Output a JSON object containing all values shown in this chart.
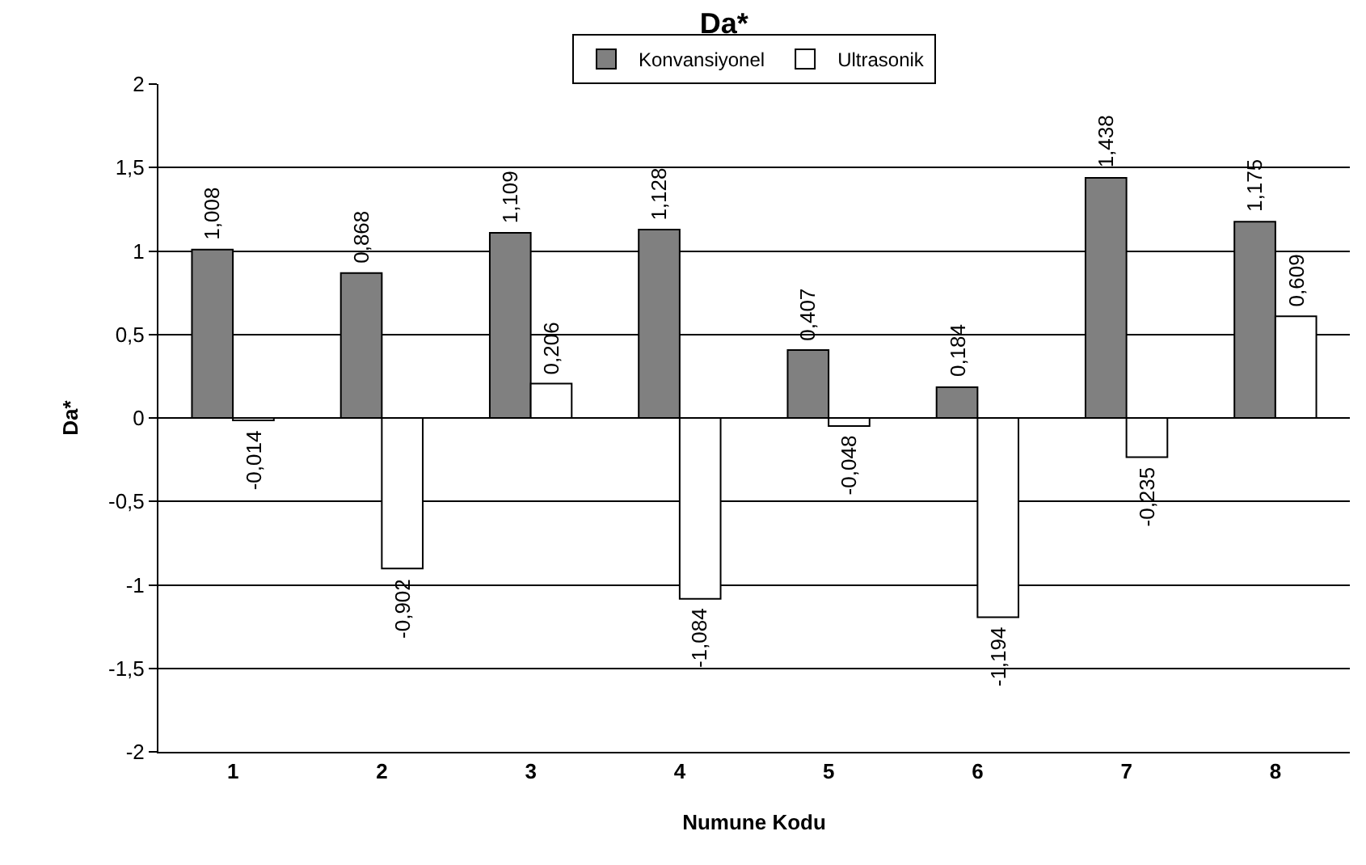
{
  "chart_data": {
    "type": "bar",
    "title": "Da*",
    "xlabel": "Numune Kodu",
    "ylabel": "Da*",
    "categories": [
      "1",
      "2",
      "3",
      "4",
      "5",
      "6",
      "7",
      "8"
    ],
    "series": [
      {
        "name": "Konvansiyonel",
        "color": "#808080",
        "values": [
          1.008,
          0.868,
          1.109,
          1.128,
          0.407,
          0.184,
          1.438,
          1.175
        ],
        "value_labels": [
          "1,008",
          "0,868",
          "1,109",
          "1,128",
          "0,407",
          "0,184",
          "1,438",
          "1,175"
        ]
      },
      {
        "name": "Ultrasonik",
        "color": "#ffffff",
        "values": [
          -0.014,
          -0.902,
          0.206,
          -1.084,
          -0.048,
          -1.194,
          -0.235,
          0.609
        ],
        "value_labels": [
          "-0,014",
          "-0,902",
          "0,206",
          "-1,084",
          "-0,048",
          "-1,194",
          "-0,235",
          "0,609"
        ]
      }
    ],
    "ylim": [
      -2,
      2
    ],
    "yticks": [
      {
        "value": -2,
        "label": "-2"
      },
      {
        "value": -1.5,
        "label": "-1,5"
      },
      {
        "value": -1,
        "label": "-1"
      },
      {
        "value": -0.5,
        "label": "-0,5"
      },
      {
        "value": 0,
        "label": "0"
      },
      {
        "value": 0.5,
        "label": "0,5"
      },
      {
        "value": 1,
        "label": "1"
      },
      {
        "value": 1.5,
        "label": "1,5"
      },
      {
        "value": 2,
        "label": "2"
      }
    ],
    "grid": "y",
    "legend": "top"
  }
}
